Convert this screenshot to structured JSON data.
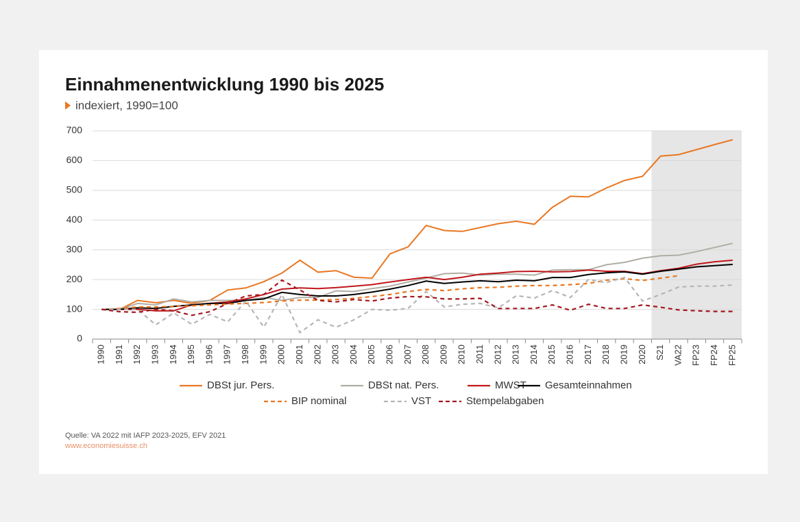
{
  "chart_data": {
    "type": "line",
    "title": "Einnahmenentwicklung 1990 bis 2025",
    "subtitle": "indexiert, 1990=100",
    "source": "Quelle: VA 2022 mit IAFP 2023-2025, EFV 2021",
    "website": "www.economiesuisse.ch",
    "categories": [
      "1990",
      "1991",
      "1992",
      "1993",
      "1994",
      "1995",
      "1996",
      "1997",
      "1998",
      "1999",
      "2000",
      "2001",
      "2002",
      "2003",
      "2004",
      "2005",
      "2006",
      "2007",
      "2008",
      "2009",
      "2010",
      "2011",
      "2012",
      "2013",
      "2014",
      "2015",
      "2016",
      "2017",
      "2018",
      "2019",
      "2020",
      "S21",
      "VA22",
      "FP23",
      "FP24",
      "FP25"
    ],
    "shaded_region": {
      "from": "S21",
      "to": "FP25",
      "color": "#e6e6e6"
    },
    "ylim": [
      0,
      700
    ],
    "yticks": [
      0,
      100,
      200,
      300,
      400,
      500,
      600,
      700
    ],
    "grid": true,
    "series": [
      {
        "name": "DBSt jur. Pers.",
        "color": "#e87722",
        "dash": false,
        "values": [
          100,
          100,
          130,
          122,
          130,
          120,
          130,
          165,
          172,
          193,
          222,
          265,
          225,
          230,
          208,
          205,
          287,
          310,
          382,
          365,
          362,
          375,
          388,
          396,
          386,
          443,
          480,
          478,
          508,
          533,
          547,
          615,
          620,
          637,
          654,
          670
        ]
      },
      {
        "name": "DBSt nat. Pers.",
        "color": "#b0ada4",
        "dash": false,
        "values": [
          100,
          100,
          120,
          115,
          135,
          125,
          130,
          130,
          130,
          140,
          130,
          140,
          140,
          162,
          160,
          170,
          178,
          192,
          205,
          220,
          222,
          215,
          218,
          218,
          215,
          232,
          233,
          233,
          250,
          258,
          272,
          280,
          282,
          294,
          308,
          322
        ]
      },
      {
        "name": "MWST",
        "color": "#c0161b",
        "dash": false,
        "values": [
          100,
          100,
          100,
          95,
          95,
          115,
          120,
          125,
          135,
          150,
          168,
          172,
          170,
          173,
          178,
          183,
          192,
          200,
          208,
          200,
          208,
          218,
          222,
          227,
          228,
          226,
          227,
          232,
          228,
          228,
          220,
          230,
          238,
          252,
          260,
          265
        ]
      },
      {
        "name": "Gesamteinnahmen",
        "color": "#000000",
        "dash": false,
        "values": [
          100,
          100,
          105,
          103,
          110,
          115,
          120,
          120,
          130,
          135,
          157,
          150,
          145,
          145,
          150,
          158,
          168,
          180,
          195,
          187,
          192,
          196,
          193,
          198,
          196,
          207,
          207,
          217,
          223,
          226,
          218,
          228,
          235,
          243,
          247,
          251
        ]
      },
      {
        "name": "BIP nominal",
        "color": "#e87722",
        "dash": true,
        "values": [
          100,
          103,
          108,
          108,
          110,
          112,
          115,
          118,
          120,
          123,
          128,
          131,
          131,
          133,
          137,
          143,
          150,
          160,
          167,
          163,
          169,
          173,
          174,
          178,
          180,
          180,
          183,
          187,
          198,
          203,
          197,
          205,
          213,
          null,
          null,
          null
        ]
      },
      {
        "name": "VST",
        "color": "#b5b5b5",
        "dash": true,
        "values": [
          100,
          100,
          100,
          48,
          88,
          50,
          83,
          58,
          128,
          40,
          150,
          22,
          65,
          40,
          65,
          100,
          97,
          103,
          160,
          108,
          117,
          120,
          105,
          146,
          138,
          163,
          140,
          200,
          190,
          207,
          128,
          150,
          175,
          178,
          178,
          182
        ]
      },
      {
        "name": "Stempelabgaben",
        "color": "#a3161d",
        "dash": true,
        "values": [
          100,
          92,
          90,
          100,
          95,
          80,
          92,
          120,
          145,
          150,
          198,
          165,
          130,
          125,
          133,
          128,
          138,
          143,
          142,
          135,
          135,
          137,
          103,
          103,
          103,
          115,
          97,
          117,
          103,
          103,
          115,
          107,
          98,
          95,
          93,
          93
        ]
      }
    ]
  }
}
